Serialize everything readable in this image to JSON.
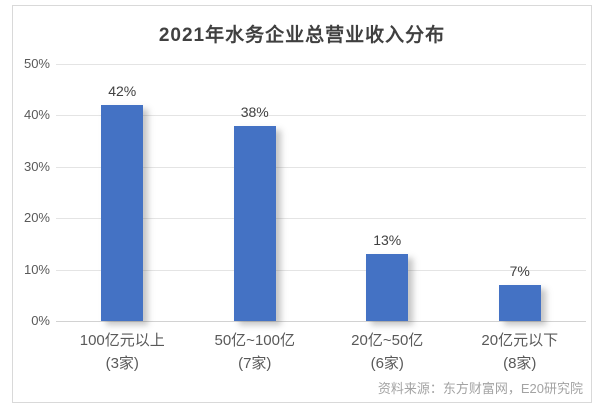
{
  "chart": {
    "title": "2021年水务企业总营业收入分布",
    "source": "资料来源：东方财富网，E20研究院"
  },
  "chart_data": {
    "type": "bar",
    "title": "2021年水务企业总营业收入分布",
    "categories": [
      "100亿元以上",
      "50亿~100亿",
      "20亿~50亿",
      "20亿元以下"
    ],
    "category_sublabels": [
      "(3家)",
      "(7家)",
      "(6家)",
      "(8家)"
    ],
    "values": [
      42,
      38,
      13,
      7
    ],
    "value_labels": [
      "42%",
      "38%",
      "13%",
      "7%"
    ],
    "ylim": [
      0,
      50
    ],
    "yticks": [
      0,
      10,
      20,
      30,
      40,
      50
    ],
    "ytick_labels": [
      "0%",
      "10%",
      "20%",
      "30%",
      "40%",
      "50%"
    ],
    "xlabel": "",
    "ylabel": "",
    "grid": true,
    "legend": "none",
    "bar_color": "#4472c4",
    "gridline_color": "#e4e4e4",
    "source": "资料来源：东方财富网，E20研究院"
  }
}
